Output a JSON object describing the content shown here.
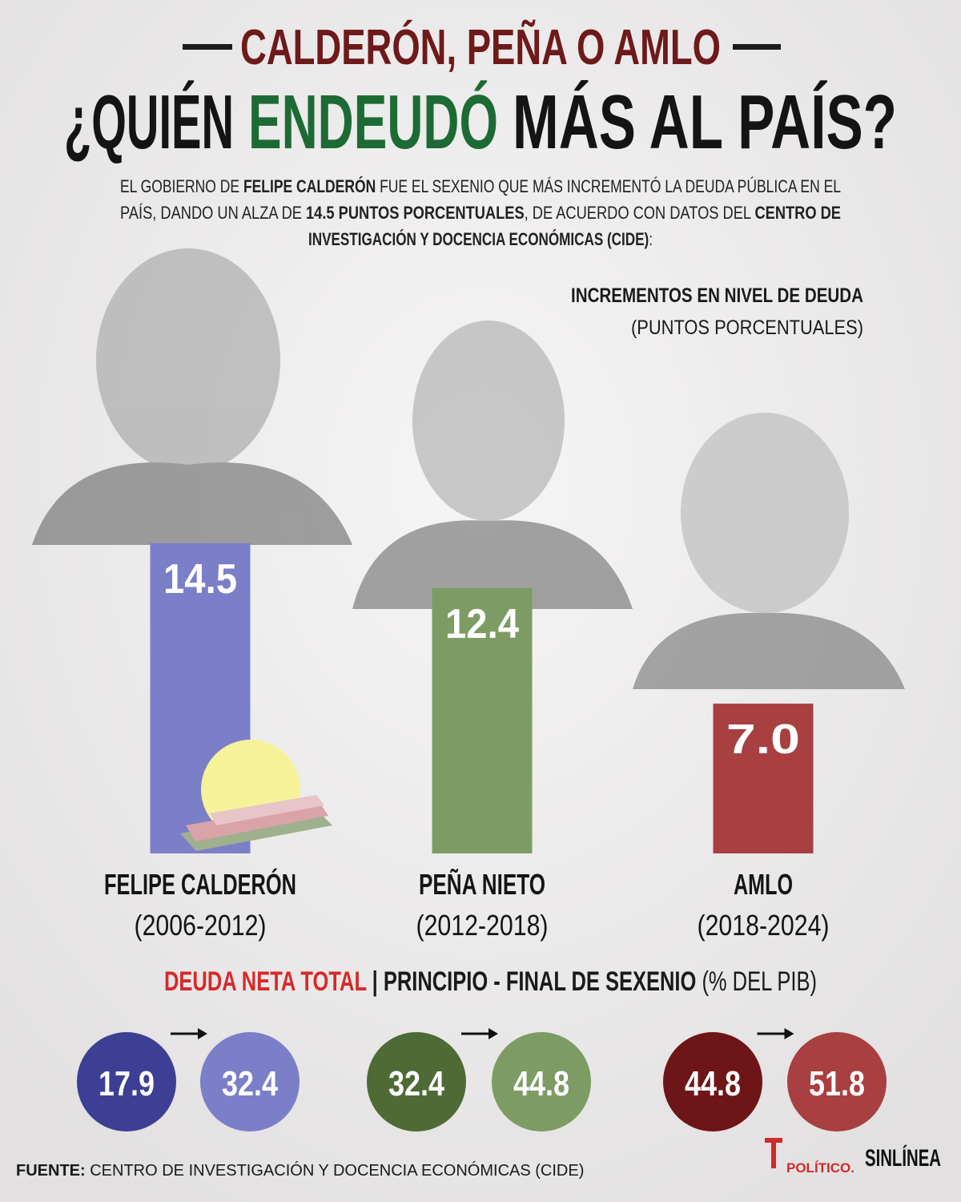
{
  "header": {
    "kicker": "CALDERÓN, PEÑA O AMLO",
    "title_parts": [
      "¿QUIÉN",
      "ENDEUDÓ",
      "MÁS AL PAÍS?"
    ]
  },
  "intro": [
    [
      {
        "text": "EL GOBIERNO DE ",
        "bold": false
      },
      {
        "text": "FELIPE CALDERÓN",
        "bold": true
      },
      {
        "text": " FUE EL SEXENIO QUE MÁS INCREMENTÓ LA DEUDA PÚBLICA EN EL",
        "bold": false
      }
    ],
    [
      {
        "text": "PAÍS, DANDO UN ALZA DE ",
        "bold": false
      },
      {
        "text": "14.5 PUNTOS PORCENTUALES",
        "bold": true
      },
      {
        "text": ", DE ACUERDO CON DATOS DEL ",
        "bold": false
      },
      {
        "text": "CENTRO DE",
        "bold": true
      }
    ],
    [
      {
        "text": "INVESTIGACIÓN Y DOCENCIA ECONÓMICAS (CIDE)",
        "bold": true
      },
      {
        "text": ":",
        "bold": false
      }
    ]
  ],
  "chart_data": {
    "type": "bar",
    "title": "INCREMENTOS EN NIVEL DE DEUDA",
    "subtitle": "(PUNTOS PORCENTUALES)",
    "categories": [
      "FELIPE CALDERÓN",
      "PEÑA NIETO",
      "AMLO"
    ],
    "periods": [
      "(2006-2012)",
      "(2012-2018)",
      "(2018-2024)"
    ],
    "values": [
      14.5,
      12.4,
      7.0
    ],
    "value_labels": [
      "14.5",
      "12.4",
      "7.0"
    ],
    "colors": [
      "#7b7fc8",
      "#7d9c63",
      "#a83f41"
    ]
  },
  "debt": {
    "title": [
      {
        "text": "DEUDA NETA TOTAL",
        "style": "red"
      },
      {
        "text": " | PRINCIPIO - FINAL DE SEXENIO",
        "style": "bold"
      },
      {
        "text": " (% DEL PIB)",
        "style": "normal"
      }
    ],
    "rows": [
      {
        "start": 17.9,
        "end": 32.4,
        "start_color": "#3d3f94",
        "end_color": "#7b7fc8"
      },
      {
        "start": 32.4,
        "end": 44.8,
        "start_color": "#4e6b36",
        "end_color": "#7d9c63"
      },
      {
        "start": 44.8,
        "end": 51.8,
        "start_color": "#6e1518",
        "end_color": "#a83f41"
      }
    ]
  },
  "source": {
    "label": "FUENTE:",
    "text": " CENTRO DE INVESTIGACIÓN Y DOCENCIA ECONÓMICAS (CIDE)"
  },
  "logos": [
    "POLÍTICO.",
    "SINLÍNEA"
  ]
}
